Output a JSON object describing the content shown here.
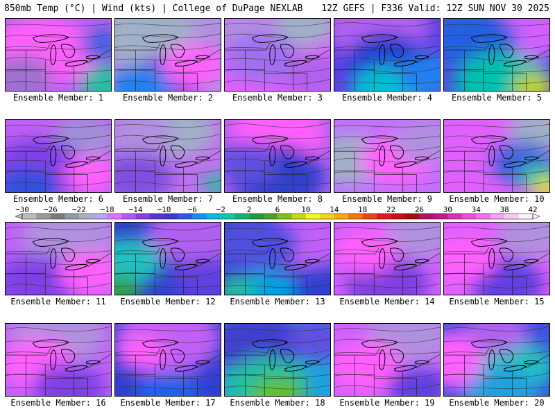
{
  "header": {
    "left": "850mb Temp (°C) | Wind (kts) | College of DuPage NEXLAB",
    "right": "12Z GEFS | F336 Valid: 12Z SUN NOV 30 2025"
  },
  "caption_prefix": "Ensemble Member:",
  "members": [
    {
      "id": "1",
      "base": "#b060f0",
      "blobs": [
        [
          "#ff60ff",
          0.35,
          0.45,
          0.5
        ],
        [
          "#a070d0",
          0.15,
          0.8,
          0.3
        ],
        [
          "#20c0a0",
          0.95,
          0.9,
          0.25
        ],
        [
          "#4060e0",
          0.9,
          0.35,
          0.2
        ]
      ]
    },
    {
      "id": "2",
      "base": "#b090e0",
      "blobs": [
        [
          "#a0b0c8",
          0.3,
          0.2,
          0.45
        ],
        [
          "#8040e0",
          0.5,
          0.85,
          0.35
        ],
        [
          "#2080f0",
          0.25,
          0.95,
          0.3
        ],
        [
          "#ff60ff",
          0.75,
          0.65,
          0.3
        ]
      ]
    },
    {
      "id": "3",
      "base": "#e060ff",
      "blobs": [
        [
          "#a0b0c8",
          0.75,
          0.1,
          0.3
        ],
        [
          "#b090e0",
          0.2,
          0.2,
          0.3
        ],
        [
          "#a070f0",
          0.35,
          0.55,
          0.35
        ],
        [
          "#b060f0",
          0.85,
          0.8,
          0.3
        ]
      ]
    },
    {
      "id": "4",
      "base": "#6040e8",
      "blobs": [
        [
          "#b060f0",
          0.4,
          0.1,
          0.5
        ],
        [
          "#2040d8",
          0.5,
          0.6,
          0.4
        ],
        [
          "#00c0d0",
          0.5,
          1.0,
          0.35
        ],
        [
          "#2080f0",
          0.9,
          0.8,
          0.3
        ]
      ]
    },
    {
      "id": "5",
      "base": "#5050e0",
      "blobs": [
        [
          "#d060ff",
          0.85,
          0.15,
          0.4
        ],
        [
          "#2060e0",
          0.3,
          0.3,
          0.4
        ],
        [
          "#00c0b0",
          0.55,
          0.9,
          0.45
        ],
        [
          "#c0d020",
          0.85,
          0.95,
          0.2
        ]
      ]
    },
    {
      "id": "6",
      "base": "#c060f8",
      "blobs": [
        [
          "#a090d8",
          0.75,
          0.25,
          0.3
        ],
        [
          "#8040e8",
          0.3,
          0.7,
          0.45
        ],
        [
          "#3050e0",
          0.2,
          0.95,
          0.3
        ],
        [
          "#ff60ff",
          0.8,
          0.75,
          0.25
        ]
      ]
    },
    {
      "id": "7",
      "base": "#c070f0",
      "blobs": [
        [
          "#a0b0c8",
          0.6,
          0.15,
          0.35
        ],
        [
          "#b090e0",
          0.25,
          0.2,
          0.3
        ],
        [
          "#8050e0",
          0.2,
          0.8,
          0.35
        ],
        [
          "#20c0a0",
          0.98,
          0.9,
          0.15
        ]
      ]
    },
    {
      "id": "8",
      "base": "#b060f0",
      "blobs": [
        [
          "#ff60ff",
          0.5,
          0.2,
          0.45
        ],
        [
          "#3040d0",
          0.5,
          0.8,
          0.45
        ],
        [
          "#6050e0",
          0.2,
          0.6,
          0.3
        ]
      ]
    },
    {
      "id": "9",
      "base": "#c070ff",
      "blobs": [
        [
          "#a0b0c8",
          0.15,
          0.55,
          0.35
        ],
        [
          "#ff60ff",
          0.6,
          0.55,
          0.35
        ],
        [
          "#b090e0",
          0.85,
          0.3,
          0.3
        ]
      ]
    },
    {
      "id": "10",
      "base": "#e060ff",
      "blobs": [
        [
          "#a0b0c8",
          0.9,
          0.15,
          0.3
        ],
        [
          "#4060e0",
          0.75,
          0.6,
          0.3
        ],
        [
          "#20c0a0",
          0.9,
          0.8,
          0.2
        ],
        [
          "#e0e020",
          0.98,
          0.95,
          0.15
        ]
      ]
    },
    {
      "id": "11",
      "base": "#c060f8",
      "blobs": [
        [
          "#b090e0",
          0.6,
          0.2,
          0.45
        ],
        [
          "#8040e8",
          0.3,
          0.85,
          0.4
        ],
        [
          "#ff60ff",
          0.8,
          0.7,
          0.3
        ]
      ]
    },
    {
      "id": "12",
      "base": "#3040d0",
      "blobs": [
        [
          "#b060f0",
          0.75,
          0.15,
          0.45
        ],
        [
          "#20c0c0",
          0.1,
          0.55,
          0.35
        ],
        [
          "#30a040",
          0.05,
          0.95,
          0.2
        ],
        [
          "#6040e0",
          0.85,
          0.8,
          0.3
        ]
      ]
    },
    {
      "id": "13",
      "base": "#3040d0",
      "blobs": [
        [
          "#c060f8",
          0.8,
          0.2,
          0.45
        ],
        [
          "#5050e0",
          0.3,
          0.3,
          0.4
        ],
        [
          "#00a0e0",
          0.4,
          0.95,
          0.3
        ],
        [
          "#20c0a0",
          0.1,
          0.95,
          0.2
        ]
      ]
    },
    {
      "id": "14",
      "base": "#d060ff",
      "blobs": [
        [
          "#b090e0",
          0.8,
          0.15,
          0.35
        ],
        [
          "#8040e0",
          0.5,
          0.85,
          0.4
        ],
        [
          "#ff60ff",
          0.3,
          0.4,
          0.3
        ]
      ]
    },
    {
      "id": "15",
      "base": "#e060ff",
      "blobs": [
        [
          "#b090e0",
          0.85,
          0.15,
          0.35
        ],
        [
          "#6040e0",
          0.6,
          0.85,
          0.35
        ],
        [
          "#ff60ff",
          0.2,
          0.5,
          0.3
        ]
      ]
    },
    {
      "id": "16",
      "base": "#c060f8",
      "blobs": [
        [
          "#b090e0",
          0.5,
          0.15,
          0.45
        ],
        [
          "#ff60ff",
          0.3,
          0.55,
          0.35
        ],
        [
          "#8040e8",
          0.6,
          0.9,
          0.35
        ]
      ]
    },
    {
      "id": "17",
      "base": "#3040d0",
      "blobs": [
        [
          "#c060f8",
          0.5,
          0.2,
          0.5
        ],
        [
          "#ff60ff",
          0.25,
          0.4,
          0.25
        ],
        [
          "#2060f0",
          0.5,
          0.95,
          0.3
        ]
      ]
    },
    {
      "id": "18",
      "base": "#20a0e0",
      "blobs": [
        [
          "#4040d0",
          0.3,
          0.25,
          0.45
        ],
        [
          "#20c0a0",
          0.4,
          0.85,
          0.4
        ],
        [
          "#60c020",
          0.5,
          1.0,
          0.25
        ],
        [
          "#6050e0",
          0.9,
          0.2,
          0.3
        ]
      ]
    },
    {
      "id": "19",
      "base": "#d060ff",
      "blobs": [
        [
          "#b090e0",
          0.7,
          0.15,
          0.4
        ],
        [
          "#ff60ff",
          0.3,
          0.6,
          0.35
        ],
        [
          "#6040e0",
          0.8,
          0.9,
          0.3
        ]
      ]
    },
    {
      "id": "20",
      "base": "#4050e0",
      "blobs": [
        [
          "#ff60ff",
          0.15,
          0.5,
          0.4
        ],
        [
          "#20c0c0",
          0.7,
          0.6,
          0.35
        ],
        [
          "#20a0e0",
          0.55,
          0.95,
          0.35
        ],
        [
          "#b060f0",
          0.5,
          0.1,
          0.3
        ]
      ]
    }
  ],
  "colorbar": {
    "labels": [
      "−30",
      "−26",
      "−22",
      "−18",
      "−14",
      "−10",
      "−6",
      "−2",
      "2",
      "6",
      "10",
      "14",
      "18",
      "22",
      "26",
      "30",
      "34",
      "38",
      "42"
    ],
    "colors": [
      "#bdbdbd",
      "#9a9a9a",
      "#7c7c7c",
      "#909aa8",
      "#a7b0c8",
      "#b6a6ee",
      "#e070ff",
      "#b35af0",
      "#8a3ee0",
      "#5a34d0",
      "#3a3ccc",
      "#2a5ae8",
      "#1f8cf0",
      "#10b8e0",
      "#10c8a8",
      "#18b070",
      "#209a40",
      "#4aa028",
      "#80c020",
      "#c8d818",
      "#f8f820",
      "#f8d020",
      "#f8a818",
      "#f07818",
      "#e84818",
      "#e01818",
      "#c81010",
      "#a01010",
      "#a81868",
      "#c01890",
      "#d830b8",
      "#e850d8",
      "#f070f0",
      "#f8a0f8",
      "#f8c8f8",
      "#fff0ff"
    ]
  }
}
